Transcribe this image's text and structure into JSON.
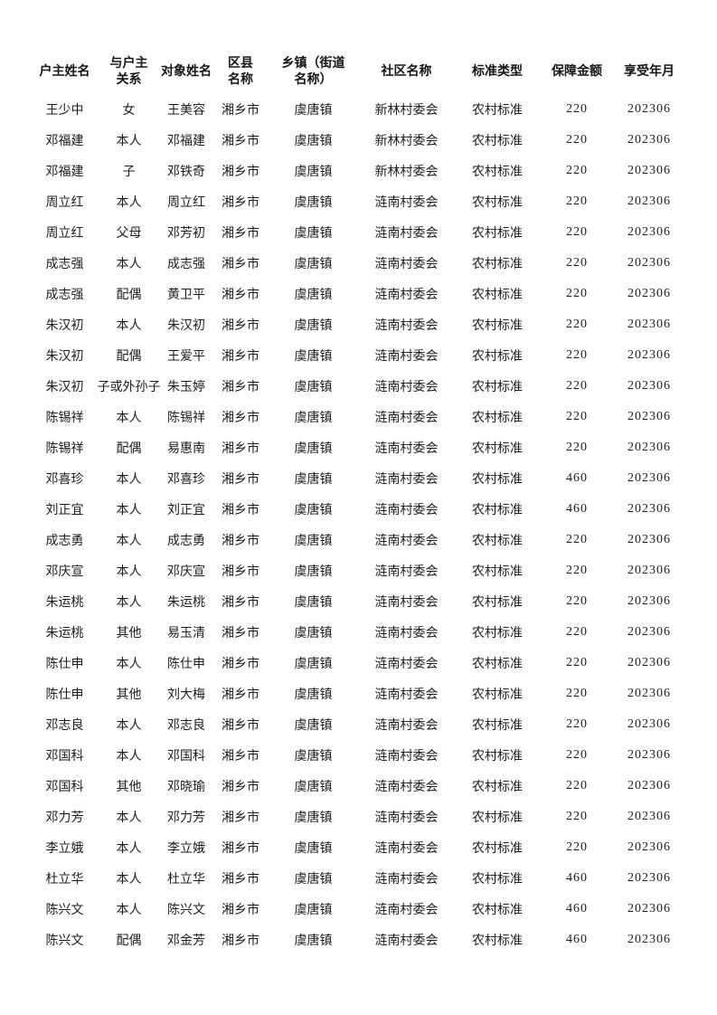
{
  "page": {
    "background": "#ffffff",
    "text_color": "#1c1c1c"
  },
  "table": {
    "columns": [
      {
        "key": "householder",
        "label": "户主姓名"
      },
      {
        "key": "relation",
        "label": "与户主\n关系"
      },
      {
        "key": "person",
        "label": "对象姓名"
      },
      {
        "key": "district",
        "label": "区县\n名称"
      },
      {
        "key": "town",
        "label": "乡镇（街道\n名称）"
      },
      {
        "key": "community",
        "label": "社区名称"
      },
      {
        "key": "standard",
        "label": "标准类型"
      },
      {
        "key": "amount",
        "label": "保障金额"
      },
      {
        "key": "month",
        "label": "享受年月"
      }
    ],
    "rows": [
      [
        "王少中",
        "女",
        "王美容",
        "湘乡市",
        "虞唐镇",
        "新林村委会",
        "农村标准",
        "220",
        "202306"
      ],
      [
        "邓福建",
        "本人",
        "邓福建",
        "湘乡市",
        "虞唐镇",
        "新林村委会",
        "农村标准",
        "220",
        "202306"
      ],
      [
        "邓福建",
        "子",
        "邓铁奇",
        "湘乡市",
        "虞唐镇",
        "新林村委会",
        "农村标准",
        "220",
        "202306"
      ],
      [
        "周立红",
        "本人",
        "周立红",
        "湘乡市",
        "虞唐镇",
        "涟南村委会",
        "农村标准",
        "220",
        "202306"
      ],
      [
        "周立红",
        "父母",
        "邓芳初",
        "湘乡市",
        "虞唐镇",
        "涟南村委会",
        "农村标准",
        "220",
        "202306"
      ],
      [
        "成志强",
        "本人",
        "成志强",
        "湘乡市",
        "虞唐镇",
        "涟南村委会",
        "农村标准",
        "220",
        "202306"
      ],
      [
        "成志强",
        "配偶",
        "黄卫平",
        "湘乡市",
        "虞唐镇",
        "涟南村委会",
        "农村标准",
        "220",
        "202306"
      ],
      [
        "朱汉初",
        "本人",
        "朱汉初",
        "湘乡市",
        "虞唐镇",
        "涟南村委会",
        "农村标准",
        "220",
        "202306"
      ],
      [
        "朱汉初",
        "配偶",
        "王爱平",
        "湘乡市",
        "虞唐镇",
        "涟南村委会",
        "农村标准",
        "220",
        "202306"
      ],
      [
        "朱汉初",
        "孙子或外孙子女",
        "朱玉婷",
        "湘乡市",
        "虞唐镇",
        "涟南村委会",
        "农村标准",
        "220",
        "202306"
      ],
      [
        "陈锡祥",
        "本人",
        "陈锡祥",
        "湘乡市",
        "虞唐镇",
        "涟南村委会",
        "农村标准",
        "220",
        "202306"
      ],
      [
        "陈锡祥",
        "配偶",
        "易惠南",
        "湘乡市",
        "虞唐镇",
        "涟南村委会",
        "农村标准",
        "220",
        "202306"
      ],
      [
        "邓喜珍",
        "本人",
        "邓喜珍",
        "湘乡市",
        "虞唐镇",
        "涟南村委会",
        "农村标准",
        "460",
        "202306"
      ],
      [
        "刘正宜",
        "本人",
        "刘正宜",
        "湘乡市",
        "虞唐镇",
        "涟南村委会",
        "农村标准",
        "460",
        "202306"
      ],
      [
        "成志勇",
        "本人",
        "成志勇",
        "湘乡市",
        "虞唐镇",
        "涟南村委会",
        "农村标准",
        "220",
        "202306"
      ],
      [
        "邓庆宣",
        "本人",
        "邓庆宣",
        "湘乡市",
        "虞唐镇",
        "涟南村委会",
        "农村标准",
        "220",
        "202306"
      ],
      [
        "朱运桃",
        "本人",
        "朱运桃",
        "湘乡市",
        "虞唐镇",
        "涟南村委会",
        "农村标准",
        "220",
        "202306"
      ],
      [
        "朱运桃",
        "其他",
        "易玉清",
        "湘乡市",
        "虞唐镇",
        "涟南村委会",
        "农村标准",
        "220",
        "202306"
      ],
      [
        "陈仕申",
        "本人",
        "陈仕申",
        "湘乡市",
        "虞唐镇",
        "涟南村委会",
        "农村标准",
        "220",
        "202306"
      ],
      [
        "陈仕申",
        "其他",
        "刘大梅",
        "湘乡市",
        "虞唐镇",
        "涟南村委会",
        "农村标准",
        "220",
        "202306"
      ],
      [
        "邓志良",
        "本人",
        "邓志良",
        "湘乡市",
        "虞唐镇",
        "涟南村委会",
        "农村标准",
        "220",
        "202306"
      ],
      [
        "邓国科",
        "本人",
        "邓国科",
        "湘乡市",
        "虞唐镇",
        "涟南村委会",
        "农村标准",
        "220",
        "202306"
      ],
      [
        "邓国科",
        "其他",
        "邓晓瑜",
        "湘乡市",
        "虞唐镇",
        "涟南村委会",
        "农村标准",
        "220",
        "202306"
      ],
      [
        "邓力芳",
        "本人",
        "邓力芳",
        "湘乡市",
        "虞唐镇",
        "涟南村委会",
        "农村标准",
        "220",
        "202306"
      ],
      [
        "李立娥",
        "本人",
        "李立娥",
        "湘乡市",
        "虞唐镇",
        "涟南村委会",
        "农村标准",
        "220",
        "202306"
      ],
      [
        "杜立华",
        "本人",
        "杜立华",
        "湘乡市",
        "虞唐镇",
        "涟南村委会",
        "农村标准",
        "460",
        "202306"
      ],
      [
        "陈兴文",
        "本人",
        "陈兴文",
        "湘乡市",
        "虞唐镇",
        "涟南村委会",
        "农村标准",
        "460",
        "202306"
      ],
      [
        "陈兴文",
        "配偶",
        "邓金芳",
        "湘乡市",
        "虞唐镇",
        "涟南村委会",
        "农村标准",
        "460",
        "202306"
      ]
    ]
  }
}
